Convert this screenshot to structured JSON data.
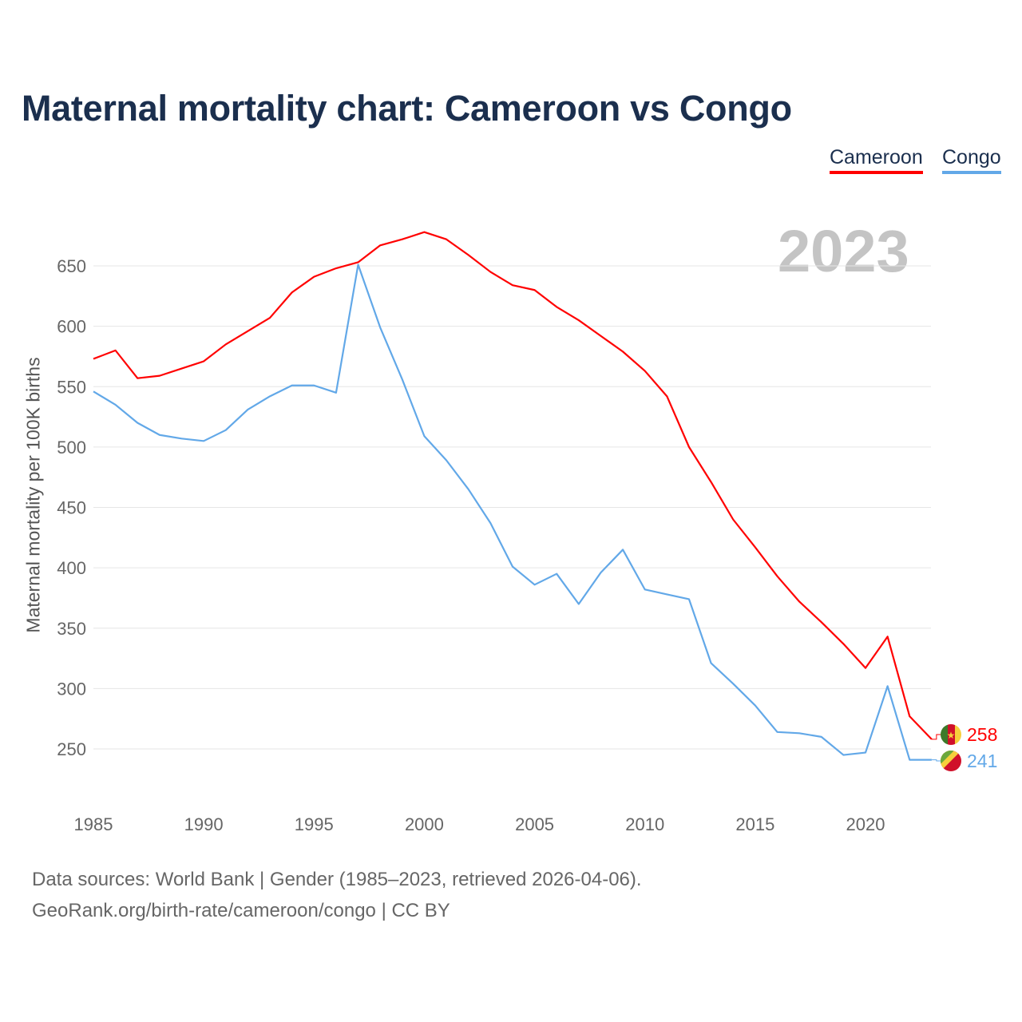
{
  "chart_data": {
    "type": "line",
    "title": "Maternal mortality chart: Cameroon vs Congo",
    "xlabel": "",
    "ylabel": "Maternal mortality per 100K births",
    "xlim": [
      1985,
      2023
    ],
    "ylim": [
      220,
      700
    ],
    "yticks": [
      250,
      300,
      350,
      400,
      450,
      500,
      550,
      600,
      650
    ],
    "xticks": [
      1985,
      1990,
      1995,
      2000,
      2005,
      2010,
      2015,
      2020
    ],
    "grid": true,
    "legend_position": "top-right",
    "year_label": "2023",
    "x": [
      1985,
      1986,
      1987,
      1988,
      1989,
      1990,
      1991,
      1992,
      1993,
      1994,
      1995,
      1996,
      1997,
      1998,
      1999,
      2000,
      2001,
      2002,
      2003,
      2004,
      2005,
      2006,
      2007,
      2008,
      2009,
      2010,
      2011,
      2012,
      2013,
      2014,
      2015,
      2016,
      2017,
      2018,
      2019,
      2020,
      2021,
      2022,
      2023
    ],
    "series": [
      {
        "name": "Cameroon",
        "color": "#ff0000",
        "end_label": "258",
        "values": [
          573,
          580,
          557,
          559,
          565,
          571,
          585,
          596,
          607,
          628,
          641,
          648,
          653,
          667,
          672,
          678,
          672,
          659,
          645,
          634,
          630,
          616,
          605,
          592,
          579,
          563,
          542,
          500,
          471,
          440,
          417,
          393,
          372,
          355,
          337,
          317,
          343,
          277,
          258
        ]
      },
      {
        "name": "Congo",
        "color": "#62a8e8",
        "end_label": "241",
        "values": [
          546,
          535,
          520,
          510,
          507,
          505,
          514,
          531,
          542,
          551,
          551,
          545,
          651,
          599,
          556,
          509,
          489,
          465,
          437,
          401,
          386,
          395,
          370,
          396,
          415,
          382,
          378,
          374,
          321,
          304,
          286,
          264,
          263,
          260,
          245,
          247,
          302,
          241,
          241
        ]
      }
    ]
  },
  "footer": {
    "sources": "Data sources: World Bank | Gender (1985–2023, retrieved 2026-04-06).",
    "link": "GeoRank.org/birth-rate/cameroon/congo | CC BY"
  }
}
